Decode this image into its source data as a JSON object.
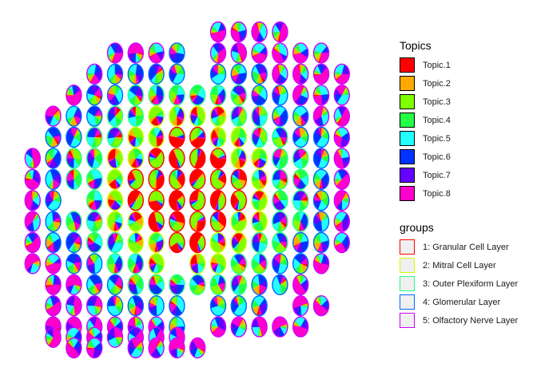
{
  "chart_data": {
    "type": "scatter",
    "subtype": "scatter-pie",
    "legends": {
      "topics": {
        "title": "Topics",
        "items": [
          {
            "label": "Topic.1",
            "color": "#FF0000"
          },
          {
            "label": "Topic.2",
            "color": "#FFAA00"
          },
          {
            "label": "Topic.3",
            "color": "#7FFF00"
          },
          {
            "label": "Topic.4",
            "color": "#22FF44"
          },
          {
            "label": "Topic.5",
            "color": "#22FFFF"
          },
          {
            "label": "Topic.6",
            "color": "#0033FF"
          },
          {
            "label": "Topic.7",
            "color": "#6600FF"
          },
          {
            "label": "Topic.8",
            "color": "#FF00CC"
          }
        ]
      },
      "groups": {
        "title": "groups",
        "items": [
          {
            "label": "1: Granular Cell Layer",
            "color": "#FF0000"
          },
          {
            "label": "2: Mitral Cell Layer",
            "color": "#CCFF00"
          },
          {
            "label": "3: Outer Plexiform Layer",
            "color": "#22FF88"
          },
          {
            "label": "4: Glomerular Layer",
            "color": "#0066FF"
          },
          {
            "label": "5: Olfactory Nerve Layer",
            "color": "#CC00FF"
          }
        ]
      }
    },
    "grid": false,
    "axes_visible": false,
    "legend_placement": "right",
    "x_range": [
      0,
      17
    ],
    "y_range": [
      0,
      16
    ],
    "rows": [
      {
        "y": 15,
        "x": [
          10,
          11,
          12,
          13
        ]
      },
      {
        "y": 14,
        "x": [
          5,
          6,
          7,
          8,
          10,
          11,
          12,
          13,
          14,
          15
        ]
      },
      {
        "y": 13,
        "x": [
          4,
          5,
          6,
          7,
          8,
          10,
          11,
          12,
          13,
          14,
          15,
          16
        ]
      },
      {
        "y": 12,
        "x": [
          3,
          4,
          5,
          6,
          7,
          8,
          9,
          10,
          11,
          12,
          13,
          14,
          15,
          16
        ]
      },
      {
        "y": 11,
        "x": [
          2,
          3,
          4,
          5,
          6,
          7,
          8,
          9,
          10,
          11,
          12,
          13,
          14,
          15,
          16
        ]
      },
      {
        "y": 10,
        "x": [
          2,
          3,
          4,
          5,
          6,
          7,
          8,
          9,
          10,
          11,
          12,
          13,
          14,
          15,
          16
        ]
      },
      {
        "y": 9,
        "x": [
          1,
          2,
          3,
          4,
          5,
          6,
          7,
          8,
          9,
          10,
          11,
          12,
          13,
          14,
          15,
          16
        ]
      },
      {
        "y": 8,
        "x": [
          1,
          2,
          3,
          4,
          5,
          6,
          7,
          8,
          9,
          10,
          11,
          12,
          13,
          14,
          15,
          16
        ]
      },
      {
        "y": 7,
        "x": [
          1,
          2,
          4,
          5,
          6,
          7,
          8,
          9,
          10,
          11,
          12,
          13,
          14,
          15,
          16
        ]
      },
      {
        "y": 6,
        "x": [
          1,
          2,
          3,
          4,
          5,
          6,
          7,
          8,
          9,
          10,
          11,
          12,
          13,
          14,
          15,
          16
        ]
      },
      {
        "y": 5,
        "x": [
          1,
          2,
          3,
          4,
          5,
          6,
          7,
          8,
          9,
          10,
          11,
          12,
          13,
          14,
          15,
          16
        ]
      },
      {
        "y": 4,
        "x": [
          1,
          2,
          3,
          4,
          5,
          6,
          7,
          9,
          10,
          11,
          12,
          13,
          14,
          15
        ]
      },
      {
        "y": 3,
        "x": [
          2,
          3,
          4,
          5,
          6,
          7,
          8,
          9,
          10,
          11,
          12,
          13,
          14
        ]
      },
      {
        "y": 2,
        "x": [
          2,
          3,
          4,
          5,
          6,
          7,
          8,
          10,
          11,
          12,
          14,
          15
        ]
      },
      {
        "y": 1,
        "x": [
          2,
          3,
          4,
          5,
          6,
          7,
          8,
          10,
          11,
          12,
          13,
          14
        ]
      },
      {
        "y": 0.5,
        "x": [
          2,
          3,
          4,
          5,
          6,
          7,
          8
        ]
      },
      {
        "y": 0,
        "x": [
          3,
          4,
          6,
          7,
          8,
          9
        ]
      }
    ]
  }
}
